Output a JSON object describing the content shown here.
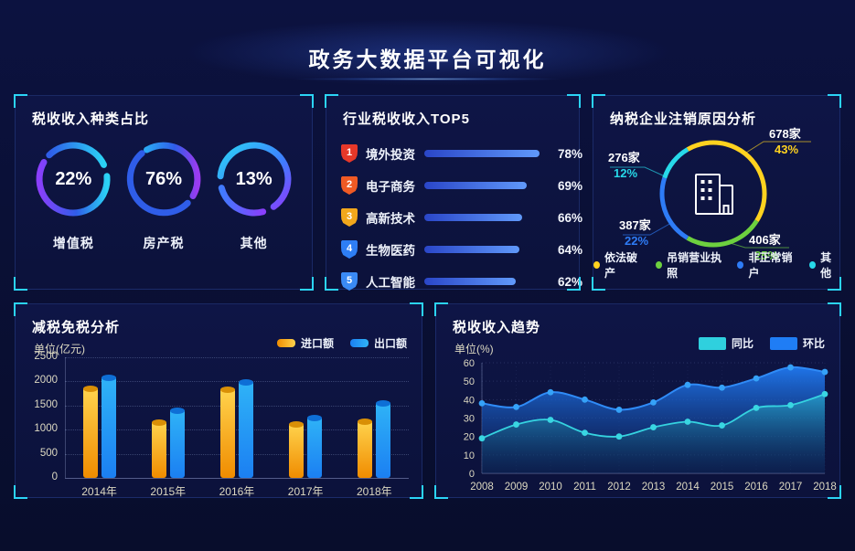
{
  "header": {
    "title": "政务大数据平台可视化"
  },
  "panels": {
    "tax_type": {
      "title": "税收收入种类占比"
    },
    "industry": {
      "title": "行业税收收入TOP5"
    },
    "cancellation": {
      "title": "纳税企业注销原因分析"
    },
    "tax_relief": {
      "title": "减税免税分析",
      "unit": "单位(亿元)"
    },
    "trend": {
      "title": "税收收入趋势",
      "unit": "单位(%)"
    }
  },
  "chart_data": [
    {
      "id": "tax-type-rings",
      "type": "pie",
      "subtype": "ring-gauges",
      "title": "税收收入种类占比",
      "unit": "%",
      "items": [
        {
          "label": "增值税",
          "value": 22,
          "colors": [
            "#8a3ffc",
            "#2f5de8",
            "#2bd3f5"
          ]
        },
        {
          "label": "房产税",
          "value": 76,
          "colors": [
            "#2ba8f5",
            "#2f5de8",
            "#9b3bf0"
          ]
        },
        {
          "label": "其他",
          "value": 13,
          "colors": [
            "#2bd3f5",
            "#3f7bff",
            "#8a3ffc"
          ]
        }
      ]
    },
    {
      "id": "industry-top5",
      "type": "bar",
      "subtype": "horizontal-rank",
      "title": "行业税收收入TOP5",
      "unit": "%",
      "categories": [
        "境外投资",
        "电子商务",
        "高新技术",
        "生物医药",
        "人工智能"
      ],
      "values": [
        78,
        69,
        66,
        64,
        62
      ],
      "ranks": [
        "1",
        "2",
        "3",
        "4",
        "5"
      ],
      "rank_colors": [
        "#e73829",
        "#f05a24",
        "#f2a71c",
        "#2e7ef5",
        "#3a8af5"
      ],
      "bar_gradient": [
        "#2a46c8",
        "#6099fa"
      ]
    },
    {
      "id": "cancellation-donut",
      "type": "pie",
      "subtype": "donut",
      "title": "纳税企业注销原因分析",
      "slices": [
        {
          "label": "依法破产",
          "count": "678家",
          "pct": 43,
          "color": "#ffd21f"
        },
        {
          "label": "吊销营业执照",
          "count": "406家",
          "pct": 25,
          "color": "#6dd03f"
        },
        {
          "label": "非正常销户",
          "count": "387家",
          "pct": 22,
          "color": "#2e7cf6"
        },
        {
          "label": "其他",
          "count": "276家",
          "pct": 12,
          "color": "#27d9e9"
        }
      ],
      "legend_position": "bottom",
      "center_icon": "building-icon"
    },
    {
      "id": "tax-relief-bars",
      "type": "bar",
      "title": "减税免税分析",
      "ylabel": "单位(亿元)",
      "ylim": [
        0,
        2500
      ],
      "yticks": [
        0,
        500,
        1000,
        1500,
        2000,
        2500
      ],
      "categories": [
        "2014年",
        "2015年",
        "2016年",
        "2017年",
        "2018年"
      ],
      "series": [
        {
          "name": "进口额",
          "color_top": "#ffd34d",
          "color_bottom": "#f08c00",
          "cap_color": "#d98f06",
          "values": [
            1850,
            1150,
            1830,
            1120,
            1170
          ]
        },
        {
          "name": "出口额",
          "color_top": "#2fb3f7",
          "color_bottom": "#1b7ff2",
          "cap_color": "#0e6fd6",
          "values": [
            2080,
            1400,
            1980,
            1250,
            1560
          ]
        }
      ],
      "grid": "dotted",
      "legend_position": "top-right"
    },
    {
      "id": "revenue-trend",
      "type": "area",
      "title": "税收收入趋势",
      "ylabel": "单位(%)",
      "ylim": [
        0,
        60
      ],
      "yticks": [
        0,
        10,
        20,
        30,
        40,
        50,
        60
      ],
      "x": [
        "2008",
        "2009",
        "2010",
        "2011",
        "2012",
        "2013",
        "2014",
        "2015",
        "2016",
        "2017",
        "2018"
      ],
      "series": [
        {
          "name": "同比",
          "color": "#2fd0de",
          "values": [
            19,
            26.5,
            29,
            22,
            20,
            25,
            28,
            26,
            35.5,
            37,
            43
          ]
        },
        {
          "name": "环比",
          "color": "#1f7df5",
          "values": [
            38,
            36,
            44,
            40,
            34.5,
            38.5,
            48,
            46.5,
            51.5,
            57.5,
            55
          ]
        }
      ],
      "grid": "dotted",
      "legend_position": "top-right"
    }
  ]
}
